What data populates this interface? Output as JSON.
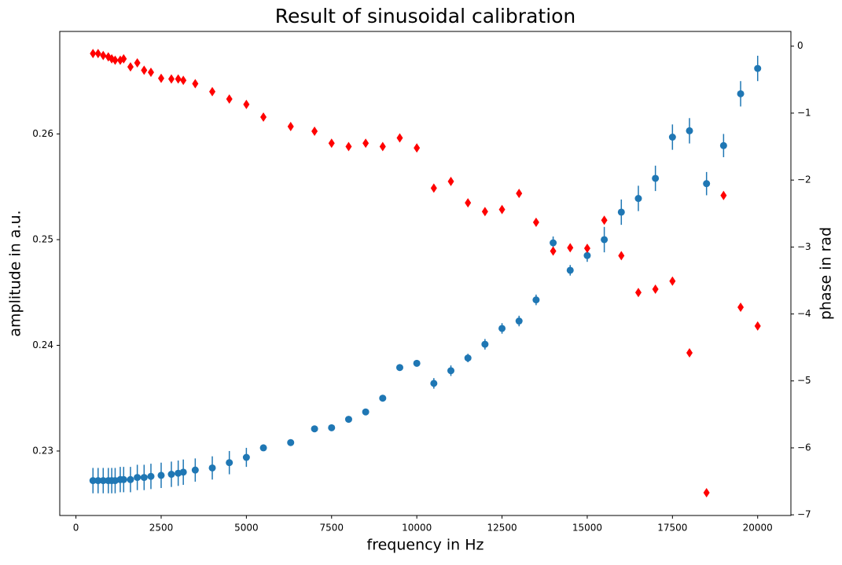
{
  "chart_data": {
    "type": "scatter",
    "title": "Result of sinusoidal calibration",
    "xlabel": "frequency in Hz",
    "ylabel": "amplitude in a.u.",
    "y2label": "phase in rad",
    "ylabel_color": "#0000ff",
    "y2label_color": "#ff0000",
    "x": [
      500,
      650,
      800,
      950,
      1050,
      1150,
      1300,
      1400,
      1600,
      1800,
      2000,
      2200,
      2500,
      2800,
      3000,
      3150,
      3500,
      4000,
      4500,
      5000,
      5500,
      6300,
      7000,
      7500,
      8000,
      8500,
      9000,
      9500,
      10000,
      10500,
      11000,
      11500,
      12000,
      12500,
      13000,
      13500,
      14000,
      14500,
      15000,
      15500,
      16000,
      16500,
      17000,
      17500,
      18000,
      18500,
      19000,
      19500,
      20000
    ],
    "series": [
      {
        "color": "#1f77b4",
        "marker": "circle",
        "values": [
          0.2272,
          0.2272,
          0.2272,
          0.2272,
          0.2272,
          0.2272,
          0.2273,
          0.2273,
          0.2273,
          0.2275,
          0.2275,
          0.2276,
          0.2277,
          0.2278,
          0.2279,
          0.228,
          0.2282,
          0.2284,
          0.2289,
          0.2294,
          0.2303,
          0.2308,
          0.2321,
          0.2322,
          0.233,
          0.2337,
          0.235,
          0.2379,
          0.2383,
          0.2364,
          0.2376,
          0.2388,
          0.2401,
          0.2416,
          0.2423,
          0.2443,
          0.2497,
          0.2471,
          0.2485,
          0.25,
          0.2526,
          0.2539,
          0.2558,
          0.2597,
          0.2603,
          0.2553,
          0.2589,
          0.2638,
          0.2662
        ],
        "errors": [
          0.0012,
          0.0012,
          0.0012,
          0.0012,
          0.0012,
          0.0012,
          0.0012,
          0.0012,
          0.0012,
          0.0012,
          0.0012,
          0.0012,
          0.0012,
          0.0012,
          0.0012,
          0.0012,
          0.0011,
          0.0011,
          0.0011,
          0.0009,
          0.0002,
          0.0002,
          0.0002,
          0.0002,
          0.0002,
          0.0002,
          0.0002,
          0.0002,
          0.0002,
          0.0005,
          0.0005,
          0.0004,
          0.0005,
          0.0005,
          0.0005,
          0.0005,
          0.0006,
          0.0005,
          0.0006,
          0.0012,
          0.0012,
          0.0012,
          0.0012,
          0.0012,
          0.0012,
          0.0011,
          0.0011,
          0.0012,
          0.0012
        ]
      },
      {
        "color": "#ff0000",
        "marker": "diamond",
        "axis": "y2",
        "values": [
          -0.11,
          -0.11,
          -0.14,
          -0.16,
          -0.19,
          -0.21,
          -0.21,
          -0.19,
          -0.31,
          -0.25,
          -0.36,
          -0.39,
          -0.48,
          -0.49,
          -0.49,
          -0.51,
          -0.56,
          -0.68,
          -0.79,
          -0.87,
          -1.06,
          -1.2,
          -1.27,
          -1.45,
          -1.5,
          -1.45,
          -1.5,
          -1.37,
          -1.52,
          -2.12,
          -2.02,
          -2.34,
          -2.47,
          -2.44,
          -2.2,
          -2.63,
          -3.06,
          -3.01,
          -3.02,
          -2.6,
          -3.13,
          -3.68,
          -3.63,
          -3.51,
          -4.58,
          -6.67,
          -2.23,
          -3.9,
          -4.18
        ]
      }
    ],
    "xlim": [
      -475,
      20975
    ],
    "xticks": [
      0,
      2500,
      5000,
      7500,
      10000,
      12500,
      15000,
      17500,
      20000
    ],
    "ylim": [
      0.2239,
      0.2697
    ],
    "yticks": [
      0.23,
      0.24,
      0.25,
      0.26
    ],
    "y2lim": [
      -7.01,
      0.22
    ],
    "y2ticks": [
      {
        "value": -7,
        "label": "−7"
      },
      {
        "value": -6,
        "label": "−6"
      },
      {
        "value": -5,
        "label": "−5"
      },
      {
        "value": -4,
        "label": "−4"
      },
      {
        "value": -3,
        "label": "−3"
      },
      {
        "value": -2,
        "label": "−2"
      },
      {
        "value": -1,
        "label": "−1"
      },
      0
    ]
  }
}
